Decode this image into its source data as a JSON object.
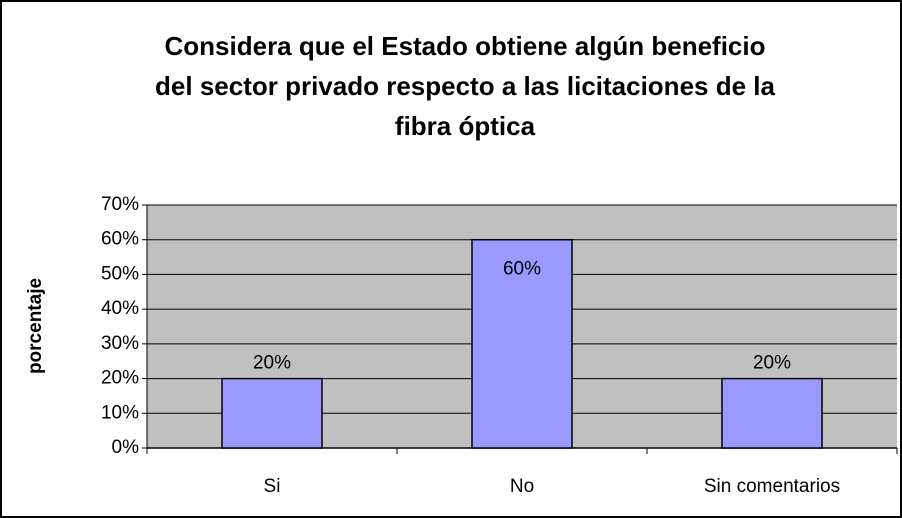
{
  "chart_data": {
    "type": "bar",
    "title": [
      "Considera que el Estado obtiene algún beneficio",
      "del sector privado respecto a las licitaciones de la",
      "fibra óptica"
    ],
    "y_label": "porcentaje",
    "categories": [
      "Si",
      "No",
      "Sin comentarios"
    ],
    "values": [
      20,
      60,
      20
    ],
    "value_labels": [
      "20%",
      "60%",
      "20%"
    ],
    "color": "#9999ff",
    "ylim": [
      0,
      70
    ],
    "yticks": [
      {
        "value": 0,
        "label": "0%"
      },
      {
        "value": 10,
        "label": "10%"
      },
      {
        "value": 20,
        "label": "20%"
      },
      {
        "value": 30,
        "label": "30%"
      },
      {
        "value": 40,
        "label": "40%"
      },
      {
        "value": 50,
        "label": "50%"
      },
      {
        "value": 60,
        "label": "60%"
      },
      {
        "value": 70,
        "label": "70%"
      }
    ],
    "grid": true
  }
}
